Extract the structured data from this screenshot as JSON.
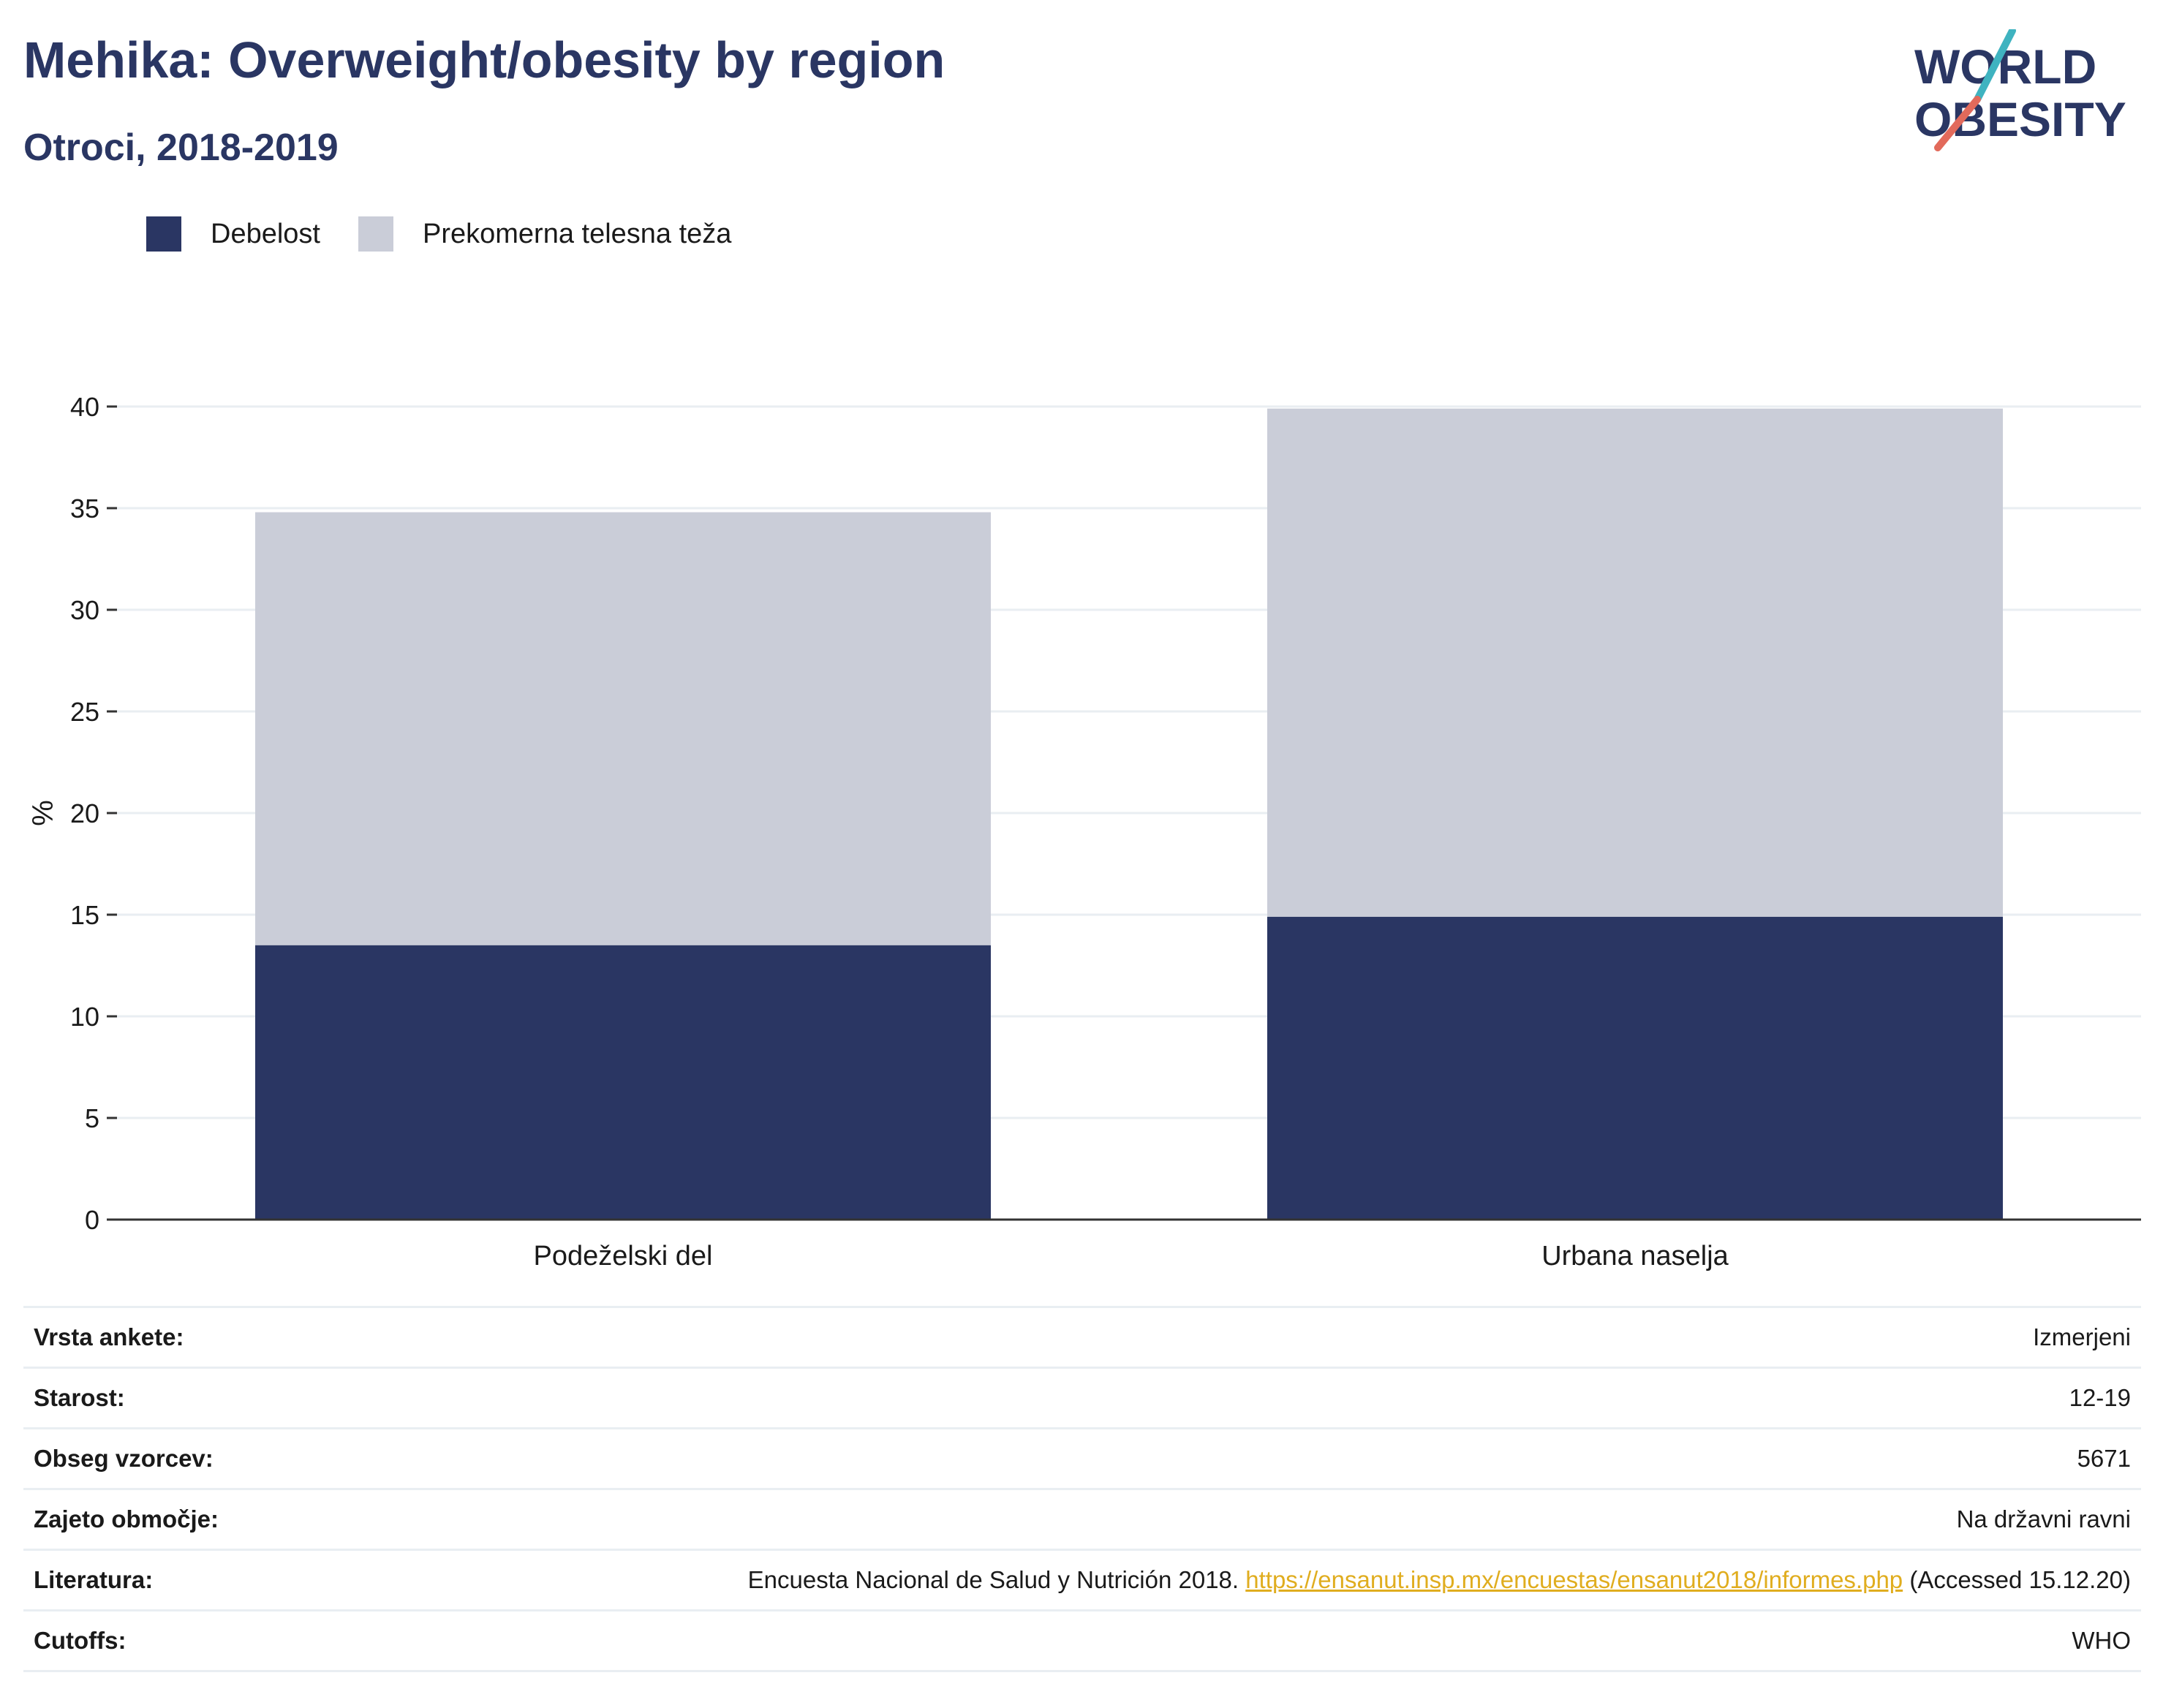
{
  "title": "Mehika: Overweight/obesity by region",
  "subtitle": "Otroci, 2018-2019",
  "logo": {
    "line1": "WORLD",
    "line2": "OBESITY"
  },
  "colors": {
    "obesity": "#2a3663",
    "overweight": "#cacdd8",
    "title": "#2a3663",
    "link": "#e0ad1f",
    "logo_teal": "#3fb3c0",
    "logo_coral": "#e26a5b"
  },
  "legend": [
    {
      "label": "Debelost",
      "color": "#2a3663"
    },
    {
      "label": "Prekomerna telesna teža",
      "color": "#cacdd8"
    }
  ],
  "chart_data": {
    "type": "bar",
    "stacked": true,
    "categories": [
      "Podeželski del",
      "Urbana naselja"
    ],
    "series": [
      {
        "name": "Debelost",
        "values": [
          13.5,
          14.9
        ]
      },
      {
        "name": "Prekomerna telesna teža",
        "values": [
          21.3,
          25.0
        ]
      }
    ],
    "ylabel": "%",
    "ylim": [
      0,
      40
    ],
    "yticks": [
      0,
      5,
      10,
      15,
      20,
      25,
      30,
      35,
      40
    ],
    "grid": true,
    "legend_position": "top-left"
  },
  "info": [
    {
      "key": "Vrsta ankete:",
      "value": "Izmerjeni"
    },
    {
      "key": "Starost:",
      "value": "12-19"
    },
    {
      "key": "Obseg vzorcev:",
      "value": "5671"
    },
    {
      "key": "Zajeto območje:",
      "value": "Na državni ravni"
    },
    {
      "key": "Literatura:",
      "value_pre": "Encuesta Nacional de Salud y Nutrición 2018. ",
      "link": "https://ensanut.insp.mx/encuestas/ensanut2018/informes.php",
      "value_post": " (Accessed 15.12.20)"
    },
    {
      "key": "Cutoffs:",
      "value": "WHO"
    }
  ]
}
